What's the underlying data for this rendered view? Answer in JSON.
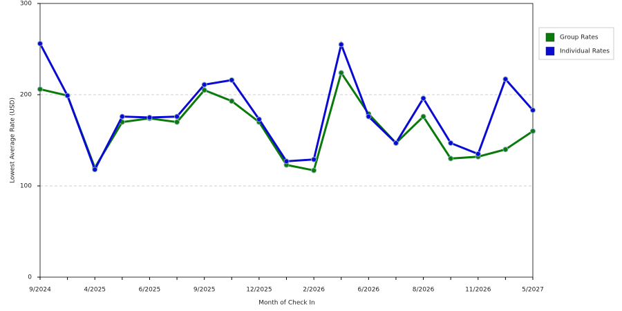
{
  "chart_data": {
    "type": "line",
    "x_label": "Month of Check In",
    "y_label": "Lowest Average Rate (USD)",
    "categories": [
      "9/2024",
      null,
      "4/2025",
      null,
      "6/2025",
      null,
      "9/2025",
      null,
      "12/2025",
      null,
      "2/2026",
      null,
      "6/2026",
      null,
      "8/2026",
      null,
      "11/2026",
      null,
      "5/2027"
    ],
    "series": [
      {
        "name": "Group Rates",
        "color": "#0a7a0a",
        "values": [
          206,
          199,
          120,
          170,
          174,
          170,
          205,
          193,
          170,
          123,
          117,
          224,
          179,
          147,
          176,
          130,
          132,
          140,
          160
        ]
      },
      {
        "name": "Individual Rates",
        "color": "#0a0ad0",
        "values": [
          256,
          199,
          118,
          176,
          175,
          176,
          211,
          216,
          173,
          127,
          129,
          255,
          176,
          147,
          196,
          147,
          135,
          217,
          183
        ]
      }
    ],
    "ylim": [
      0,
      300
    ],
    "yticks": [
      0,
      100,
      200,
      300
    ],
    "grid": true
  }
}
